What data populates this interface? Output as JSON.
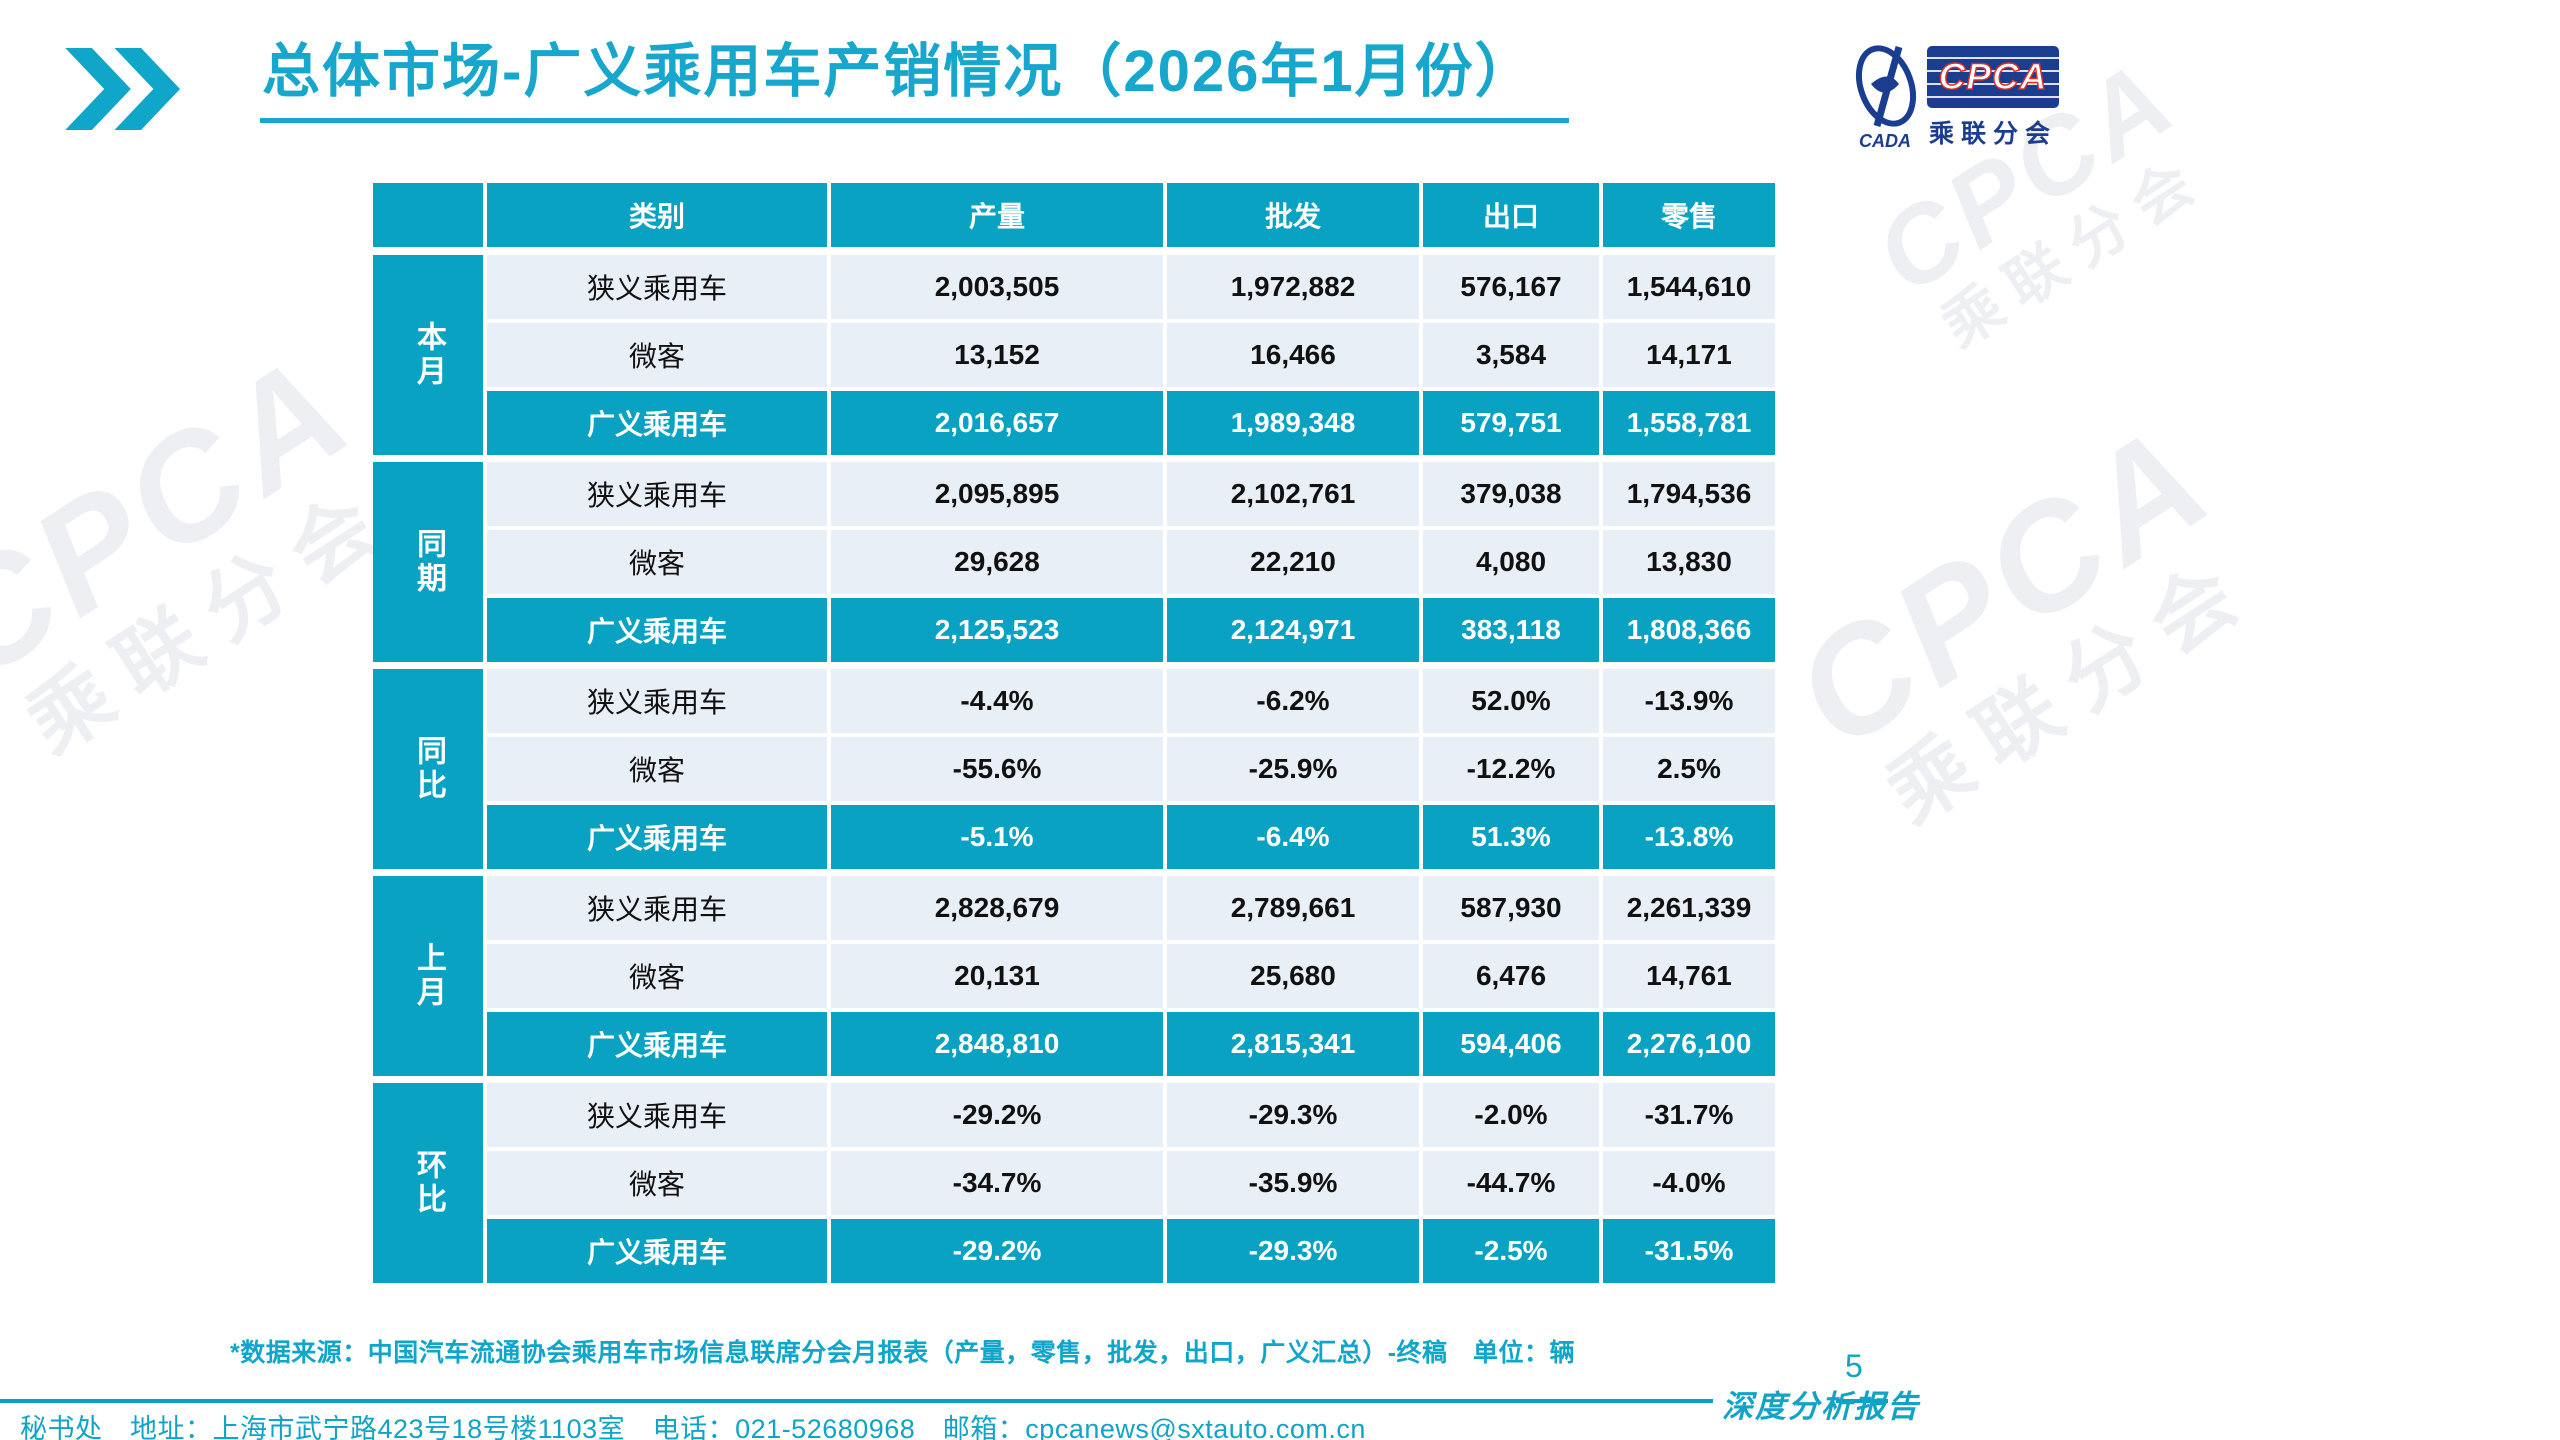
{
  "page": {
    "title": "总体市场-广义乘用车产销情况（2026年1月份）",
    "page_number": "5",
    "report_type_label": "深度分析报告"
  },
  "logo": {
    "cada_text": "CADA",
    "cpca_text": "CPCA",
    "subtitle": "乘联分会"
  },
  "watermark": {
    "line1": "CPCA",
    "line2": "乘联分会"
  },
  "table": {
    "columns": [
      "类别",
      "产量",
      "批发",
      "出口",
      "零售"
    ],
    "groups": [
      {
        "label": "本月",
        "name": "this-month",
        "rows": [
          {
            "category": "狭义乘用车",
            "values": [
              "2,003,505",
              "1,972,882",
              "576,167",
              "1,544,610"
            ],
            "highlight": false
          },
          {
            "category": "微客",
            "values": [
              "13,152",
              "16,466",
              "3,584",
              "14,171"
            ],
            "highlight": false
          },
          {
            "category": "广义乘用车",
            "values": [
              "2,016,657",
              "1,989,348",
              "579,751",
              "1,558,781"
            ],
            "highlight": true
          }
        ]
      },
      {
        "label": "同期",
        "name": "same-period",
        "rows": [
          {
            "category": "狭义乘用车",
            "values": [
              "2,095,895",
              "2,102,761",
              "379,038",
              "1,794,536"
            ],
            "highlight": false
          },
          {
            "category": "微客",
            "values": [
              "29,628",
              "22,210",
              "4,080",
              "13,830"
            ],
            "highlight": false
          },
          {
            "category": "广义乘用车",
            "values": [
              "2,125,523",
              "2,124,971",
              "383,118",
              "1,808,366"
            ],
            "highlight": true
          }
        ]
      },
      {
        "label": "同比",
        "name": "yoy-change",
        "rows": [
          {
            "category": "狭义乘用车",
            "values": [
              "-4.4%",
              "-6.2%",
              "52.0%",
              "-13.9%"
            ],
            "highlight": false
          },
          {
            "category": "微客",
            "values": [
              "-55.6%",
              "-25.9%",
              "-12.2%",
              "2.5%"
            ],
            "highlight": false
          },
          {
            "category": "广义乘用车",
            "values": [
              "-5.1%",
              "-6.4%",
              "51.3%",
              "-13.8%"
            ],
            "highlight": true
          }
        ]
      },
      {
        "label": "上月",
        "name": "last-month",
        "rows": [
          {
            "category": "狭义乘用车",
            "values": [
              "2,828,679",
              "2,789,661",
              "587,930",
              "2,261,339"
            ],
            "highlight": false
          },
          {
            "category": "微客",
            "values": [
              "20,131",
              "25,680",
              "6,476",
              "14,761"
            ],
            "highlight": false
          },
          {
            "category": "广义乘用车",
            "values": [
              "2,848,810",
              "2,815,341",
              "594,406",
              "2,276,100"
            ],
            "highlight": true
          }
        ]
      },
      {
        "label": "环比",
        "name": "mom-change",
        "rows": [
          {
            "category": "狭义乘用车",
            "values": [
              "-29.2%",
              "-29.3%",
              "-2.0%",
              "-31.7%"
            ],
            "highlight": false
          },
          {
            "category": "微客",
            "values": [
              "-34.7%",
              "-35.9%",
              "-44.7%",
              "-4.0%"
            ],
            "highlight": false
          },
          {
            "category": "广义乘用车",
            "values": [
              "-29.2%",
              "-29.3%",
              "-2.5%",
              "-31.5%"
            ],
            "highlight": true
          }
        ]
      }
    ]
  },
  "footnote": "*数据来源：中国汽车流通协会乘用车市场信息联席分会月报表（产量，零售，批发，出口，广义汇总）-终稿　单位：辆",
  "footer": {
    "contact": "秘书处　地址：上海市武宁路423号18号楼1103室　电话：021-52680968　邮箱：cpcanews@sxtauto.com.cn"
  },
  "colors": {
    "teal": "#0aa2c3",
    "title_teal": "#17a7cd",
    "row_bg": "#e9eff7",
    "logo_navy": "#1b3d8f",
    "logo_red": "#d93025"
  }
}
